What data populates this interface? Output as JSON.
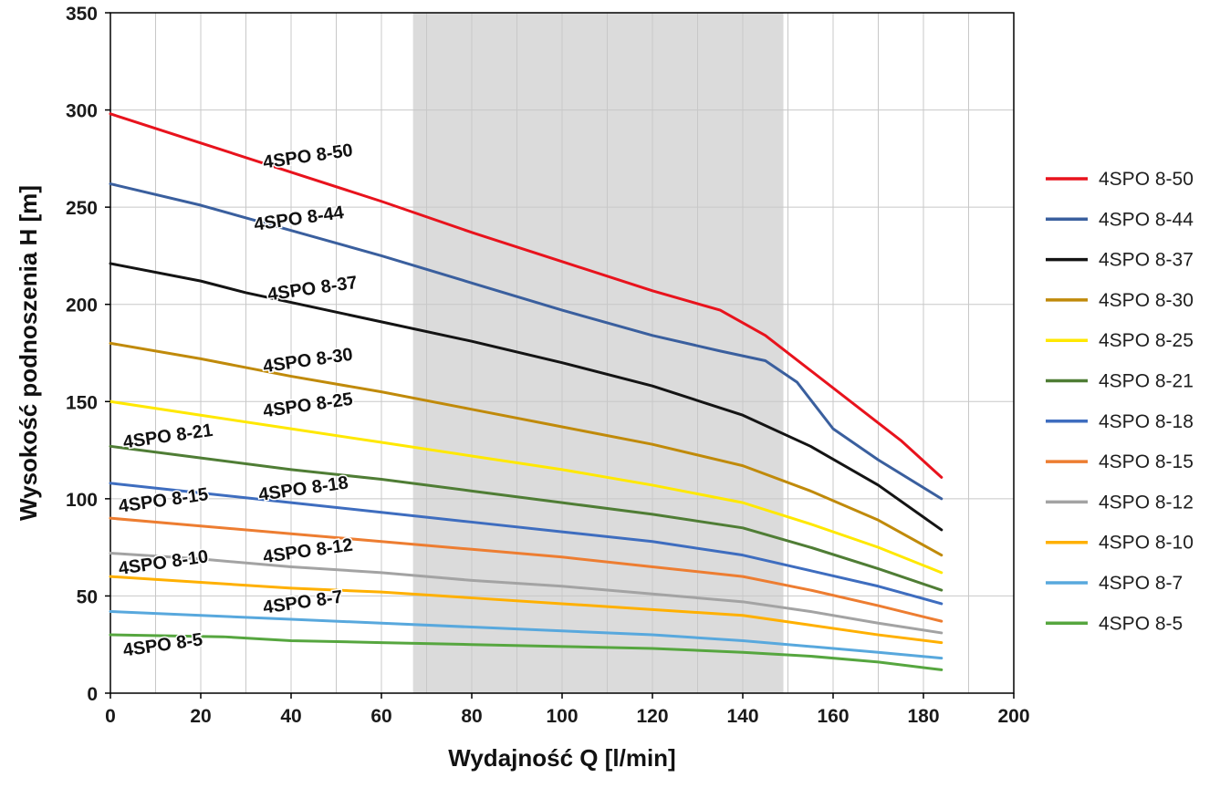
{
  "chart_data": {
    "type": "line",
    "title": "",
    "xlabel": "Wydajność Q [l/min]",
    "ylabel": "Wysokość podnoszenia H [m]",
    "xlim": [
      0,
      200
    ],
    "ylim": [
      0,
      350
    ],
    "x_tick_step": 20,
    "y_tick_step": 50,
    "x_grid_step": 10,
    "y_grid_step": 50,
    "grid": true,
    "grid_color": "#c8c8c8",
    "border_color": "#000000",
    "legend_position": "right",
    "shaded_band": {
      "from": 67,
      "to": 149,
      "color": "#dbdbdb"
    },
    "series": [
      {
        "name": "4SPO 8-50",
        "color": "#e8131d",
        "label": {
          "x": 34,
          "y": 270,
          "rotation": -8
        },
        "points": [
          [
            0,
            298
          ],
          [
            20,
            283
          ],
          [
            40,
            268
          ],
          [
            60,
            253
          ],
          [
            80,
            237
          ],
          [
            100,
            222
          ],
          [
            120,
            207
          ],
          [
            135,
            197
          ],
          [
            145,
            184
          ],
          [
            155,
            166
          ],
          [
            165,
            148
          ],
          [
            175,
            130
          ],
          [
            184,
            111
          ]
        ]
      },
      {
        "name": "4SPO 8-44",
        "color": "#3a5f9e",
        "label": {
          "x": 32,
          "y": 238,
          "rotation": -8
        },
        "points": [
          [
            0,
            262
          ],
          [
            20,
            251
          ],
          [
            40,
            238
          ],
          [
            60,
            225
          ],
          [
            80,
            211
          ],
          [
            100,
            197
          ],
          [
            120,
            184
          ],
          [
            135,
            176
          ],
          [
            145,
            171
          ],
          [
            152,
            160
          ],
          [
            160,
            136
          ],
          [
            170,
            120
          ],
          [
            184,
            100
          ]
        ]
      },
      {
        "name": "4SPO 8-37",
        "color": "#141414",
        "label": {
          "x": 35,
          "y": 202,
          "rotation": -8
        },
        "points": [
          [
            0,
            221
          ],
          [
            20,
            212
          ],
          [
            30,
            206
          ],
          [
            40,
            201
          ],
          [
            60,
            191
          ],
          [
            80,
            181
          ],
          [
            100,
            170
          ],
          [
            120,
            158
          ],
          [
            140,
            143
          ],
          [
            155,
            127
          ],
          [
            170,
            107
          ],
          [
            184,
            84
          ]
        ]
      },
      {
        "name": "4SPO 8-30",
        "color": "#c08a0a",
        "label": {
          "x": 34,
          "y": 165,
          "rotation": -8
        },
        "points": [
          [
            0,
            180
          ],
          [
            20,
            172
          ],
          [
            40,
            163
          ],
          [
            60,
            155
          ],
          [
            80,
            146
          ],
          [
            100,
            137
          ],
          [
            120,
            128
          ],
          [
            140,
            117
          ],
          [
            155,
            104
          ],
          [
            170,
            89
          ],
          [
            184,
            71
          ]
        ]
      },
      {
        "name": "4SPO 8-25",
        "color": "#ffe800",
        "label": {
          "x": 34,
          "y": 142,
          "rotation": -8
        },
        "points": [
          [
            0,
            150
          ],
          [
            20,
            143
          ],
          [
            40,
            136
          ],
          [
            60,
            129
          ],
          [
            80,
            122
          ],
          [
            100,
            115
          ],
          [
            120,
            107
          ],
          [
            140,
            98
          ],
          [
            155,
            87
          ],
          [
            170,
            75
          ],
          [
            184,
            62
          ]
        ]
      },
      {
        "name": "4SPO 8-21",
        "color": "#4f7d35",
        "label": {
          "x": 3,
          "y": 126,
          "rotation": -8
        },
        "points": [
          [
            0,
            127
          ],
          [
            20,
            121
          ],
          [
            40,
            115
          ],
          [
            60,
            110
          ],
          [
            80,
            104
          ],
          [
            100,
            98
          ],
          [
            120,
            92
          ],
          [
            140,
            85
          ],
          [
            155,
            75
          ],
          [
            170,
            64
          ],
          [
            184,
            53
          ]
        ]
      },
      {
        "name": "4SPO 8-18",
        "color": "#3e6dbf",
        "label": {
          "x": 33,
          "y": 99,
          "rotation": -8
        },
        "points": [
          [
            0,
            108
          ],
          [
            20,
            103
          ],
          [
            40,
            98
          ],
          [
            60,
            93
          ],
          [
            80,
            88
          ],
          [
            100,
            83
          ],
          [
            120,
            78
          ],
          [
            140,
            71
          ],
          [
            155,
            63
          ],
          [
            170,
            55
          ],
          [
            184,
            46
          ]
        ]
      },
      {
        "name": "4SPO 8-15",
        "color": "#ed7d31",
        "label": {
          "x": 2,
          "y": 93,
          "rotation": -8
        },
        "points": [
          [
            0,
            90
          ],
          [
            20,
            86
          ],
          [
            40,
            82
          ],
          [
            60,
            78
          ],
          [
            80,
            74
          ],
          [
            100,
            70
          ],
          [
            120,
            65
          ],
          [
            140,
            60
          ],
          [
            155,
            53
          ],
          [
            170,
            45
          ],
          [
            184,
            37
          ]
        ]
      },
      {
        "name": "4SPO 8-12",
        "color": "#a3a3a3",
        "label": {
          "x": 34,
          "y": 67,
          "rotation": -8
        },
        "points": [
          [
            0,
            72
          ],
          [
            20,
            69
          ],
          [
            40,
            65
          ],
          [
            60,
            62
          ],
          [
            80,
            58
          ],
          [
            100,
            55
          ],
          [
            120,
            51
          ],
          [
            140,
            47
          ],
          [
            155,
            42
          ],
          [
            170,
            36
          ],
          [
            184,
            31
          ]
        ]
      },
      {
        "name": "4SPO 8-10",
        "color": "#ffb000",
        "label": {
          "x": 2,
          "y": 61,
          "rotation": -8
        },
        "points": [
          [
            0,
            60
          ],
          [
            20,
            57
          ],
          [
            40,
            54
          ],
          [
            60,
            52
          ],
          [
            80,
            49
          ],
          [
            100,
            46
          ],
          [
            120,
            43
          ],
          [
            140,
            40
          ],
          [
            155,
            35
          ],
          [
            170,
            30
          ],
          [
            184,
            26
          ]
        ]
      },
      {
        "name": "4SPO 8-7",
        "color": "#58a8dd",
        "label": {
          "x": 34,
          "y": 41,
          "rotation": -8
        },
        "points": [
          [
            0,
            42
          ],
          [
            20,
            40
          ],
          [
            40,
            38
          ],
          [
            60,
            36
          ],
          [
            80,
            34
          ],
          [
            100,
            32
          ],
          [
            120,
            30
          ],
          [
            140,
            27
          ],
          [
            155,
            24
          ],
          [
            170,
            21
          ],
          [
            184,
            18
          ]
        ]
      },
      {
        "name": "4SPO 8-5",
        "color": "#56a63f",
        "label": {
          "x": 3,
          "y": 19,
          "rotation": -8
        },
        "points": [
          [
            0,
            30
          ],
          [
            25,
            29
          ],
          [
            40,
            27
          ],
          [
            60,
            26
          ],
          [
            80,
            25
          ],
          [
            100,
            24
          ],
          [
            120,
            23
          ],
          [
            140,
            21
          ],
          [
            155,
            19
          ],
          [
            170,
            16
          ],
          [
            184,
            12
          ]
        ]
      }
    ],
    "legend_entries": [
      "4SPO 8-50",
      "4SPO 8-44",
      "4SPO 8-37",
      "4SPO 8-30",
      "4SPO 8-25",
      "4SPO 8-21",
      "4SPO 8-18",
      "4SPO 8-15",
      "4SPO 8-12",
      "4SPO 8-10",
      "4SPO 8-7",
      "4SPO 8-5"
    ]
  }
}
